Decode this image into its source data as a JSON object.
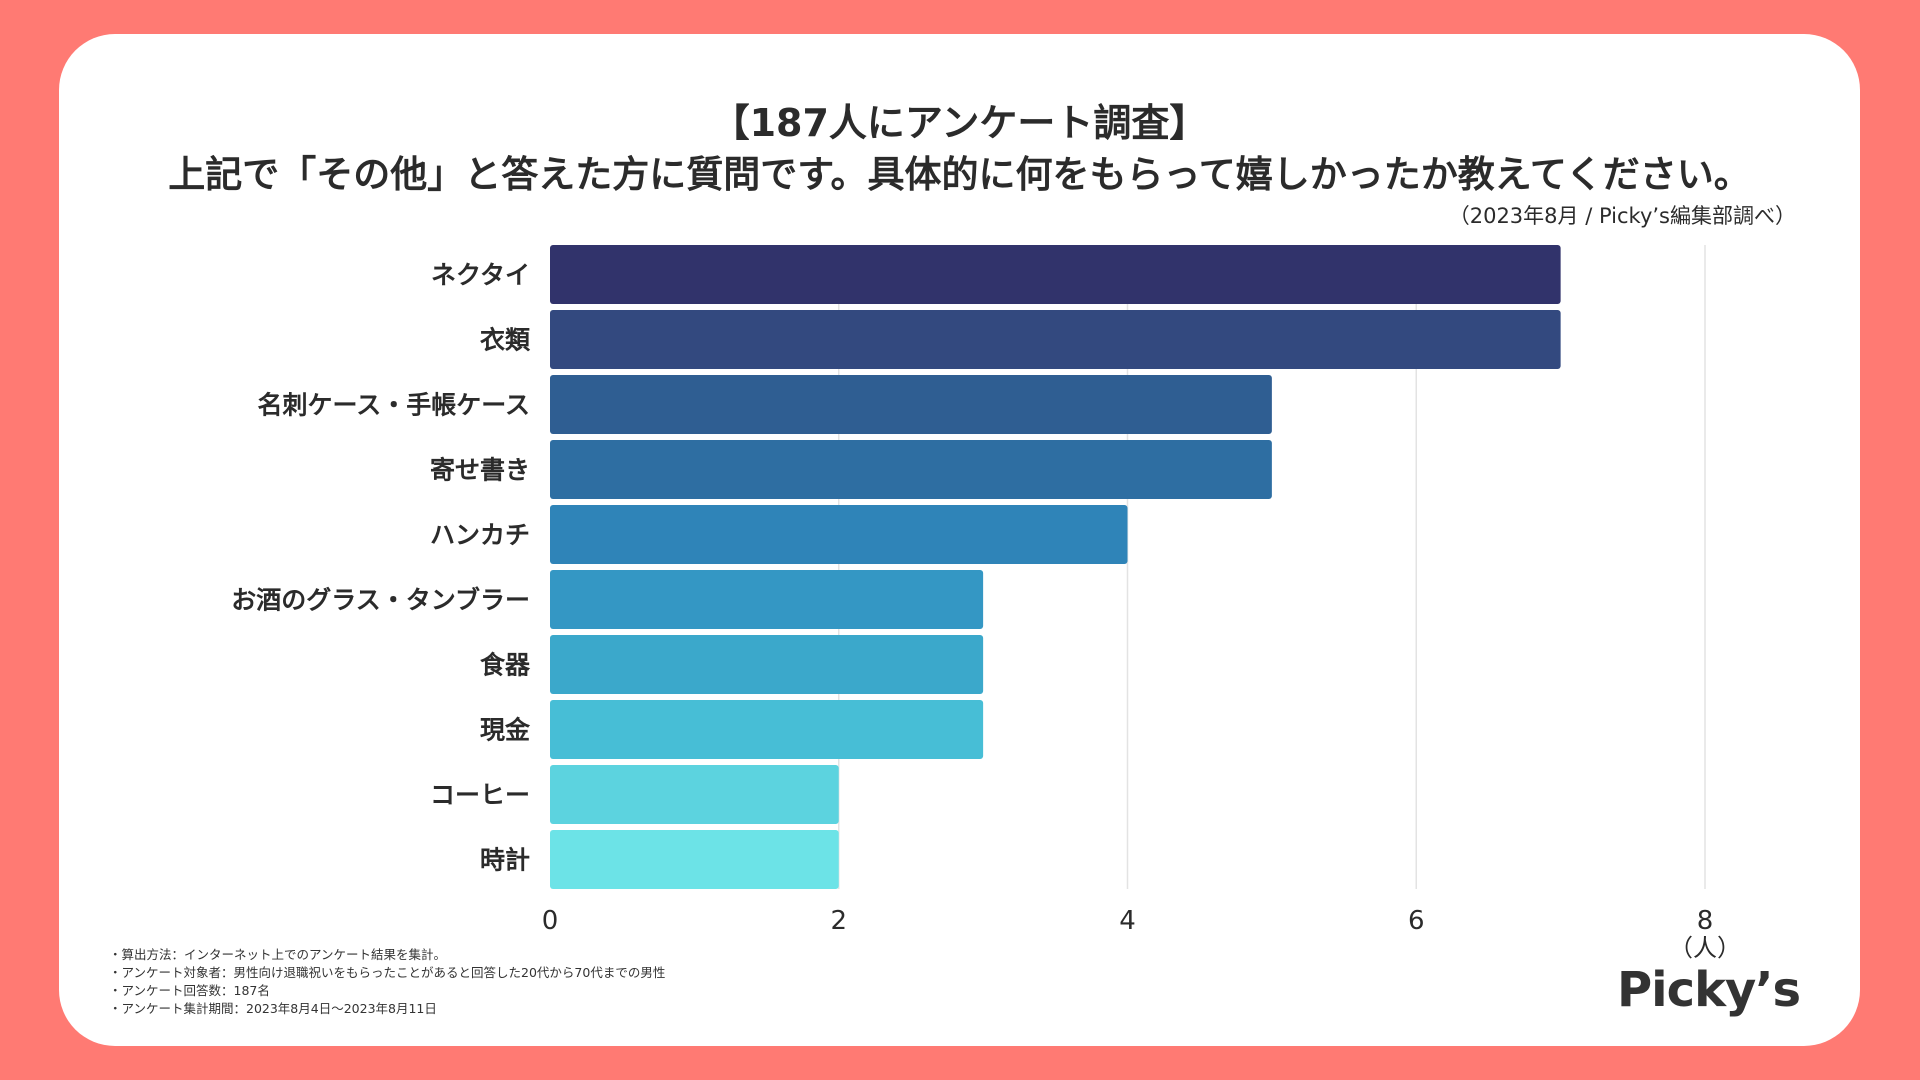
{
  "header": {
    "title_line1": "【187人にアンケート調査】",
    "title_line2": "上記で「その他」と答えた方に質問です。具体的に何をもらって嬉しかったか教えてください。",
    "source": "（2023年8月 / Picky’s編集部調べ）"
  },
  "chart_data": {
    "type": "bar",
    "orientation": "horizontal",
    "title": "上記で「その他」と答えた方に質問です。具体的に何をもらって嬉しかったか教えてください。",
    "categories": [
      "ネクタイ",
      "衣類",
      "名刺ケース・手帳ケース",
      "寄せ書き",
      "ハンカチ",
      "お酒のグラス・タンブラー",
      "食器",
      "現金",
      "コーヒー",
      "時計"
    ],
    "values": [
      7,
      7,
      5,
      5,
      4,
      3,
      3,
      3,
      2,
      2
    ],
    "colors": [
      "#31336B",
      "#33497F",
      "#2F5E92",
      "#2E6EA2",
      "#2F84B8",
      "#3497C4",
      "#3BA8CB",
      "#47BED6",
      "#5CD3DF",
      "#6CE3E7"
    ],
    "xlim": [
      0,
      8
    ],
    "xticks": [
      0,
      2,
      4,
      6,
      8
    ],
    "xunit": "（人）",
    "xlabel": "",
    "ylabel": "",
    "grid": true
  },
  "notes": [
    "・算出方法：インターネット上でのアンケート結果を集計。",
    "・アンケート対象者：男性向け退職祝いをもらったことがあると回答した20代から70代までの男性",
    "・アンケート回答数：187名",
    "・アンケート集計期間：2023年8月4日〜2023年8月11日"
  ],
  "brand": {
    "logo_text": "Picky’s"
  }
}
